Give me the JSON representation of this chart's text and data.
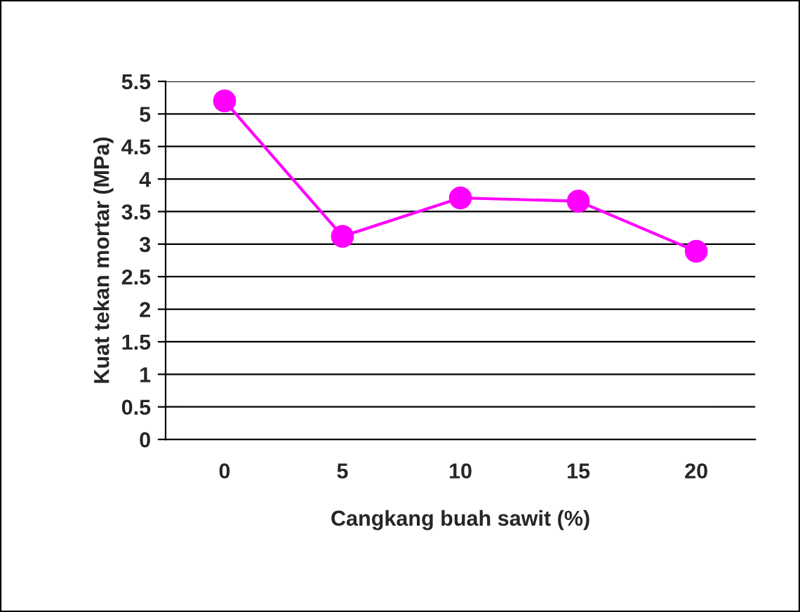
{
  "chart_data": {
    "type": "line",
    "xlabel": "Cangkang buah sawit (%)",
    "ylabel": "Kuat tekan mortar (MPa)",
    "categories": [
      "0",
      "5",
      "10",
      "15",
      "20"
    ],
    "series": [
      {
        "color": "#ff00ff",
        "values": [
          5.2,
          3.12,
          3.71,
          3.66,
          2.89
        ]
      }
    ],
    "ylim": [
      0,
      5.5
    ],
    "yticks": [
      0,
      {
        "value": 0.5,
        "label": "0.5"
      },
      1,
      {
        "value": 1.5,
        "label": "1.5"
      },
      2,
      {
        "value": 2.5,
        "label": "2.5"
      },
      3,
      {
        "value": 3.5,
        "label": "3.5"
      },
      4,
      {
        "value": 4.5,
        "label": "4.5"
      },
      5,
      {
        "value": 5.5,
        "label": "5.5"
      }
    ],
    "grid": "y",
    "marker": "circle",
    "line_style": "solid",
    "legend": false
  }
}
